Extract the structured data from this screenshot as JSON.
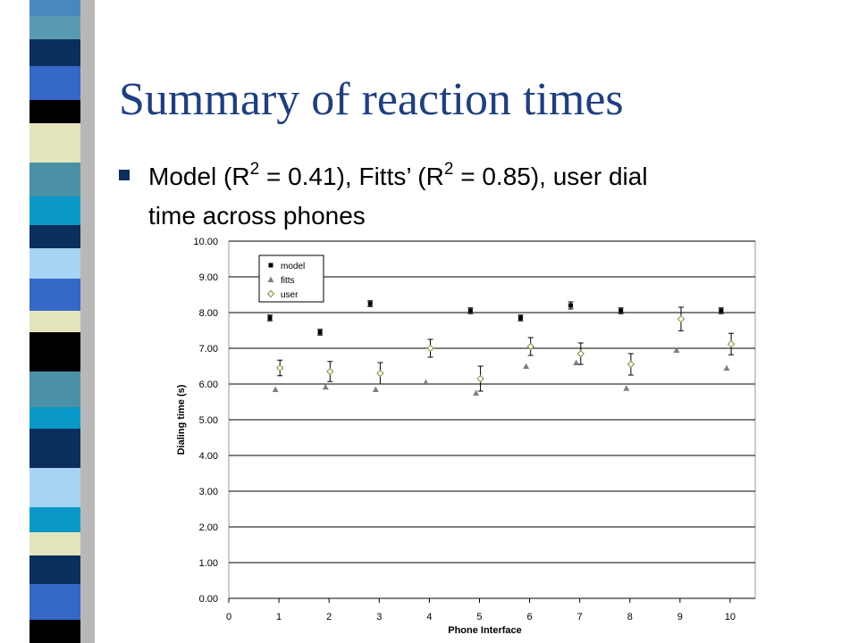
{
  "slide": {
    "title": "Summary of reaction times",
    "bullet": [
      "Model (R",
      "2",
      " = 0.41), Fitts’ (R",
      "2",
      " = 0.85), user dial",
      "time across phones"
    ]
  },
  "chart_data": {
    "type": "scatter",
    "x_label": "Phone Interface",
    "y_label": "Dialing time (s)",
    "xlim": [
      0,
      10.5
    ],
    "xticks": [
      0,
      1,
      2,
      3,
      4,
      5,
      6,
      7,
      8,
      9,
      10
    ],
    "ylim": [
      0,
      10
    ],
    "yticks": [
      {
        "value": 0,
        "label": "0.00"
      },
      {
        "value": 1,
        "label": "1.00"
      },
      {
        "value": 2,
        "label": "2.00"
      },
      {
        "value": 3,
        "label": "3.00"
      },
      {
        "value": 4,
        "label": "4.00"
      },
      {
        "value": 5,
        "label": "5.00"
      },
      {
        "value": 6,
        "label": "6.00"
      },
      {
        "value": 7,
        "label": "7.00"
      },
      {
        "value": 8,
        "label": "8.00"
      },
      {
        "value": 9,
        "label": "9.00"
      },
      {
        "value": 10,
        "label": "10.00"
      }
    ],
    "grid": true,
    "legend": "upper-left",
    "series": [
      {
        "name": "model",
        "color": "#000000",
        "marker": "square",
        "x": [
          0.82,
          1.82,
          2.82,
          4.82,
          5.82,
          6.82,
          7.82,
          9.82
        ],
        "values": [
          7.85,
          7.45,
          8.25,
          8.05,
          7.85,
          8.2,
          8.05,
          8.05
        ],
        "errors": [
          0.08,
          0.08,
          0.08,
          0.08,
          0.08,
          0.1,
          0.08,
          0.08
        ]
      },
      {
        "name": "fitts",
        "color": "#808080",
        "marker": "triangle",
        "x": [
          0.93,
          1.93,
          2.93,
          3.93,
          4.93,
          5.93,
          6.93,
          7.93,
          8.93,
          9.93
        ],
        "values": [
          5.85,
          5.92,
          5.85,
          6.05,
          5.75,
          6.5,
          6.6,
          5.88,
          6.95,
          6.45
        ]
      },
      {
        "name": "user",
        "color": "#8a8a3a",
        "marker": "diamond",
        "x": [
          1.02,
          2.02,
          3.02,
          4.02,
          5.02,
          6.02,
          7.02,
          8.02,
          9.02,
          10.02
        ],
        "values": [
          6.45,
          6.35,
          6.3,
          7.0,
          6.15,
          7.05,
          6.85,
          6.55,
          7.82,
          7.12
        ],
        "errors": [
          0.22,
          0.28,
          0.3,
          0.25,
          0.35,
          0.25,
          0.3,
          0.3,
          0.33,
          0.3
        ]
      }
    ]
  }
}
